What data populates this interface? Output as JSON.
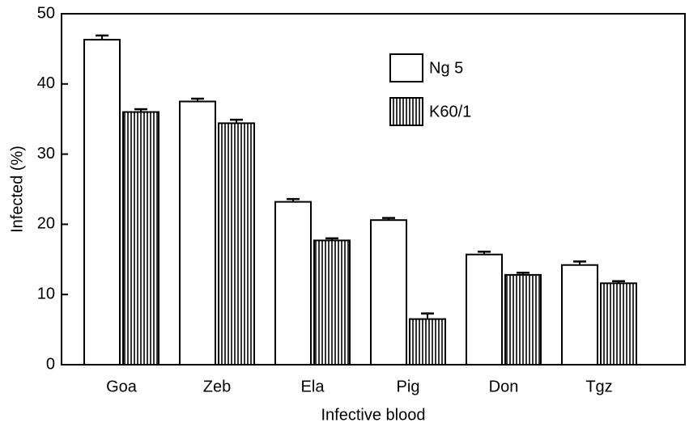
{
  "chart_data": {
    "type": "bar",
    "xlabel": "Infective blood",
    "ylabel": "Infected (%)",
    "categories": [
      "Goa",
      "Zeb",
      "Ela",
      "Pig",
      "Don",
      "Tgz"
    ],
    "series": [
      {
        "name": "Ng 5",
        "color": "#ffffff",
        "values": [
          46.3,
          37.5,
          23.2,
          20.6,
          15.7,
          14.2
        ],
        "errors": [
          0.6,
          0.4,
          0.4,
          0.3,
          0.4,
          0.5
        ]
      },
      {
        "name": "K60/1",
        "color": "#000000",
        "hatch": "vertical",
        "values": [
          36.0,
          34.4,
          17.7,
          6.5,
          12.8,
          11.6
        ],
        "errors": [
          0.4,
          0.5,
          0.3,
          0.8,
          0.3,
          0.3
        ]
      }
    ],
    "ylim": [
      0,
      50
    ],
    "yticks": [
      0,
      10,
      20,
      30,
      40,
      50
    ],
    "legend": "upper center"
  }
}
